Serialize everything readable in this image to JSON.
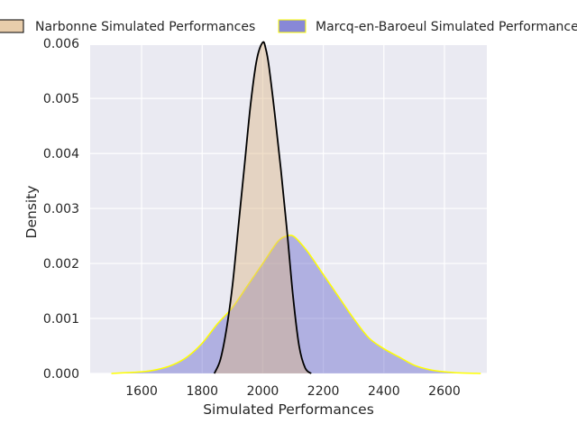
{
  "chart_data": {
    "type": "area",
    "subtype": "kde",
    "title": "",
    "xlabel": "Simulated Performances",
    "ylabel": "Density",
    "xlim": [
      1430,
      2740
    ],
    "ylim": [
      0,
      0.00597
    ],
    "xticks": [
      1600,
      1800,
      2000,
      2200,
      2400,
      2600
    ],
    "xtick_labels": [
      "1600",
      "1800",
      "2000",
      "2200",
      "2400",
      "2600"
    ],
    "yticks": [
      0,
      0.001,
      0.002,
      0.003,
      0.004,
      0.005,
      0.006
    ],
    "ytick_labels": [
      "0.000",
      "0.001",
      "0.002",
      "0.003",
      "0.004",
      "0.005",
      "0.006"
    ],
    "grid": true,
    "legend": "top-center, above plot",
    "background": "#eaeaf2",
    "series": [
      {
        "name": "Narbonne Simulated Performances",
        "fill": "#deb887",
        "fill_opacity": 0.45,
        "line": "#000000",
        "x": [
          1840,
          1860,
          1880,
          1900,
          1920,
          1940,
          1960,
          1980,
          2000,
          2010,
          2020,
          2040,
          2060,
          2080,
          2100,
          2120,
          2140,
          2160
        ],
        "y": [
          0.0,
          0.00025,
          0.0008,
          0.0016,
          0.0027,
          0.0038,
          0.0049,
          0.0057,
          0.00602,
          0.0059,
          0.0056,
          0.0047,
          0.0037,
          0.0026,
          0.0014,
          0.0005,
          0.0001,
          0.0
        ]
      },
      {
        "name": "Marcq-en-Baroeul Simulated Performances",
        "fill": "#6a6acd",
        "fill_opacity": 0.45,
        "line": "#ffff00",
        "x": [
          1500,
          1600,
          1650,
          1700,
          1750,
          1800,
          1850,
          1900,
          1950,
          2000,
          2050,
          2080,
          2100,
          2120,
          2150,
          2200,
          2250,
          2300,
          2350,
          2400,
          2450,
          2500,
          2550,
          2600,
          2650,
          2720
        ],
        "y": [
          0.0,
          3e-05,
          7e-05,
          0.00015,
          0.0003,
          0.00055,
          0.0009,
          0.0012,
          0.0016,
          0.002,
          0.0024,
          0.0025,
          0.0025,
          0.0024,
          0.0022,
          0.0018,
          0.0014,
          0.001,
          0.00065,
          0.00045,
          0.0003,
          0.00015,
          7e-05,
          3e-05,
          1e-05,
          0.0
        ]
      }
    ]
  }
}
